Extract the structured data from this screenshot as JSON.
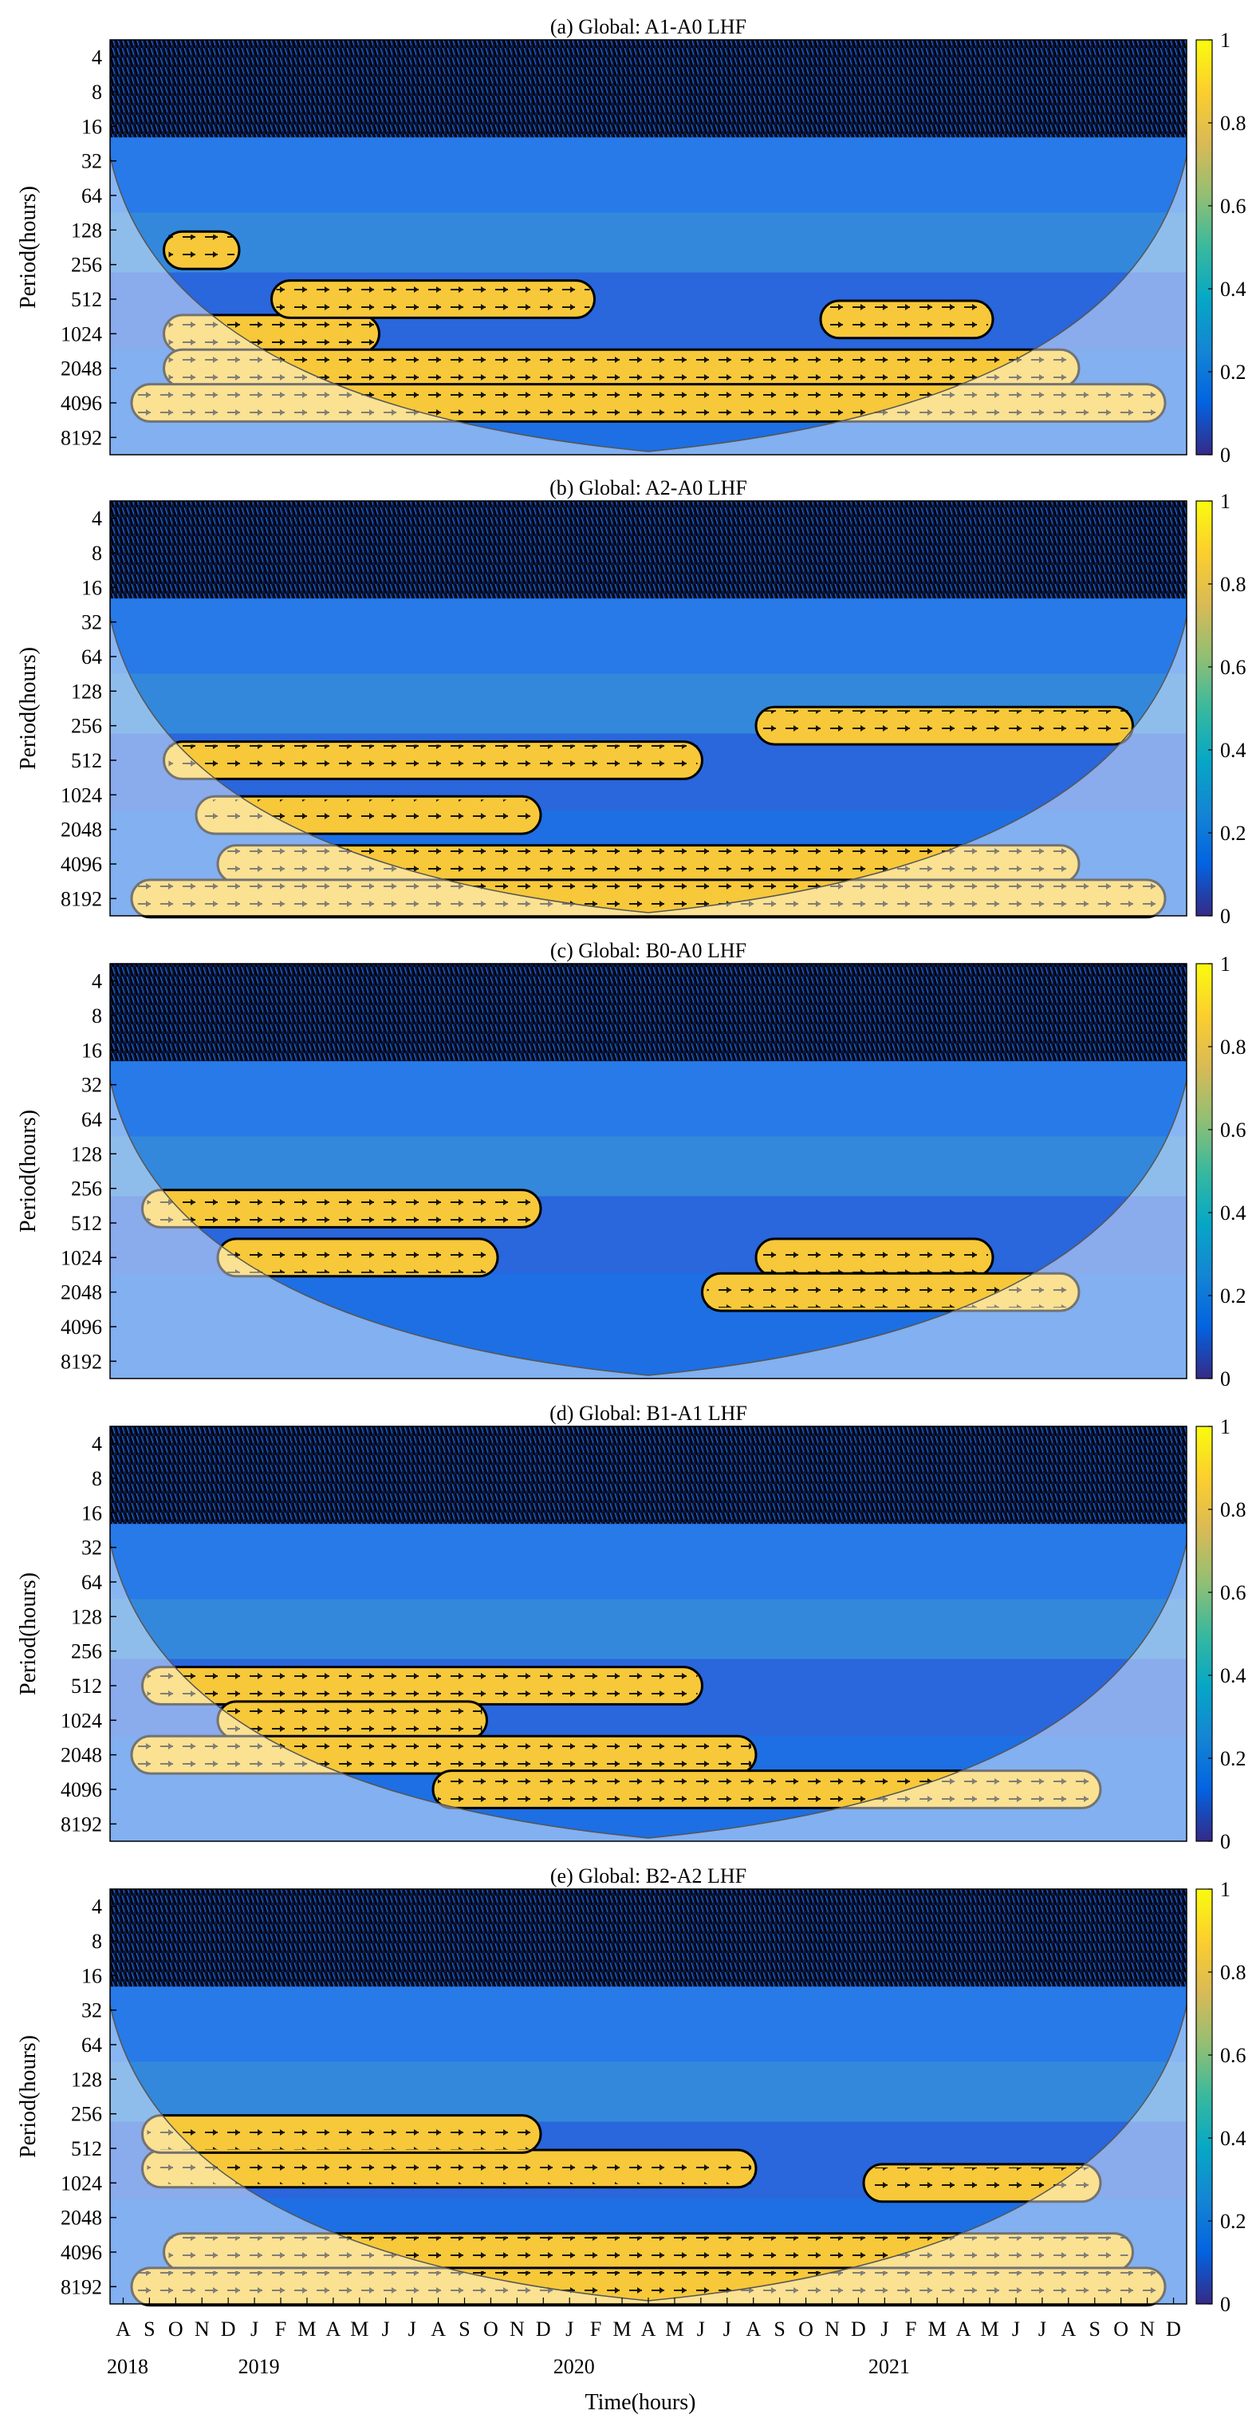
{
  "chart_data": [
    {
      "type": "heatmap",
      "panel_label": "(a)",
      "title": "Global: A1-A0 LHF",
      "ylabel": "Period(hours)",
      "y_ticks": [
        4,
        8,
        16,
        32,
        64,
        128,
        256,
        512,
        1024,
        2048,
        4096,
        8192
      ],
      "y_scale": "log2",
      "colorbar": {
        "ticks": [
          0,
          0.2,
          0.4,
          0.6,
          0.8,
          1
        ],
        "range": [
          0,
          1
        ],
        "colormap": "parula"
      },
      "significant_regions": [
        {
          "t_start": 0.05,
          "t_end": 0.25,
          "period": 1024
        },
        {
          "t_start": 0.15,
          "t_end": 0.45,
          "period": 512
        },
        {
          "t_start": 0.05,
          "t_end": 0.9,
          "period": 2048
        },
        {
          "t_start": 0.02,
          "t_end": 0.98,
          "period": 4096
        },
        {
          "t_start": 0.66,
          "t_end": 0.82,
          "period": 768
        },
        {
          "t_start": 0.05,
          "t_end": 0.12,
          "period": 192
        }
      ]
    },
    {
      "type": "heatmap",
      "panel_label": "(b)",
      "title": "Global: A2-A0 LHF",
      "ylabel": "Period(hours)",
      "y_ticks": [
        4,
        8,
        16,
        32,
        64,
        128,
        256,
        512,
        1024,
        2048,
        4096,
        8192
      ],
      "y_scale": "log2",
      "colorbar": {
        "ticks": [
          0,
          0.2,
          0.4,
          0.6,
          0.8,
          1
        ],
        "range": [
          0,
          1
        ],
        "colormap": "parula"
      },
      "significant_regions": [
        {
          "t_start": 0.05,
          "t_end": 0.55,
          "period": 512
        },
        {
          "t_start": 0.08,
          "t_end": 0.4,
          "period": 1536
        },
        {
          "t_start": 0.6,
          "t_end": 0.95,
          "period": 256
        },
        {
          "t_start": 0.1,
          "t_end": 0.9,
          "period": 4096
        },
        {
          "t_start": 0.02,
          "t_end": 0.98,
          "period": 8192
        }
      ]
    },
    {
      "type": "heatmap",
      "panel_label": "(c)",
      "title": "Global: B0-A0 LHF",
      "ylabel": "Period(hours)",
      "y_ticks": [
        4,
        8,
        16,
        32,
        64,
        128,
        256,
        512,
        1024,
        2048,
        4096,
        8192
      ],
      "y_scale": "log2",
      "colorbar": {
        "ticks": [
          0,
          0.2,
          0.4,
          0.6,
          0.8,
          1
        ],
        "range": [
          0,
          1
        ],
        "colormap": "parula"
      },
      "significant_regions": [
        {
          "t_start": 0.03,
          "t_end": 0.4,
          "period": 384
        },
        {
          "t_start": 0.1,
          "t_end": 0.36,
          "period": 1024
        },
        {
          "t_start": 0.6,
          "t_end": 0.82,
          "period": 1024
        },
        {
          "t_start": 0.55,
          "t_end": 0.9,
          "period": 2048
        }
      ]
    },
    {
      "type": "heatmap",
      "panel_label": "(d)",
      "title": "Global: B1-A1 LHF",
      "ylabel": "Period(hours)",
      "y_ticks": [
        4,
        8,
        16,
        32,
        64,
        128,
        256,
        512,
        1024,
        2048,
        4096,
        8192
      ],
      "y_scale": "log2",
      "colorbar": {
        "ticks": [
          0,
          0.2,
          0.4,
          0.6,
          0.8,
          1
        ],
        "range": [
          0,
          1
        ],
        "colormap": "parula"
      },
      "significant_regions": [
        {
          "t_start": 0.03,
          "t_end": 0.55,
          "period": 512
        },
        {
          "t_start": 0.1,
          "t_end": 0.35,
          "period": 1024
        },
        {
          "t_start": 0.02,
          "t_end": 0.6,
          "period": 2048
        },
        {
          "t_start": 0.3,
          "t_end": 0.92,
          "period": 4096
        }
      ]
    },
    {
      "type": "heatmap",
      "panel_label": "(e)",
      "title": "Global: B2-A2 LHF",
      "ylabel": "Period(hours)",
      "y_ticks": [
        4,
        8,
        16,
        32,
        64,
        128,
        256,
        512,
        1024,
        2048,
        4096,
        8192
      ],
      "y_scale": "log2",
      "colorbar": {
        "ticks": [
          0,
          0.2,
          0.4,
          0.6,
          0.8,
          1
        ],
        "range": [
          0,
          1
        ],
        "colormap": "parula"
      },
      "significant_regions": [
        {
          "t_start": 0.03,
          "t_end": 0.6,
          "period": 768
        },
        {
          "t_start": 0.03,
          "t_end": 0.4,
          "period": 384
        },
        {
          "t_start": 0.7,
          "t_end": 0.92,
          "period": 1024
        },
        {
          "t_start": 0.05,
          "t_end": 0.95,
          "period": 4096
        },
        {
          "t_start": 0.02,
          "t_end": 0.98,
          "period": 8192
        }
      ]
    }
  ],
  "x_axis": {
    "xlabel": "Time(hours)",
    "month_labels": [
      "A",
      "S",
      "O",
      "N",
      "D",
      "J",
      "F",
      "M",
      "A",
      "M",
      "J",
      "J",
      "A",
      "S",
      "O",
      "N",
      "D",
      "J",
      "F",
      "M",
      "A",
      "M",
      "J",
      "J",
      "A",
      "S",
      "O",
      "N",
      "D",
      "J",
      "F",
      "M",
      "A",
      "M",
      "J",
      "J",
      "A",
      "S",
      "O",
      "N",
      "D"
    ],
    "year_labels": [
      {
        "label": "2018",
        "month_index": 0
      },
      {
        "label": "2019",
        "month_index": 5
      },
      {
        "label": "2020",
        "month_index": 17
      },
      {
        "label": "2021",
        "month_index": 29
      }
    ]
  },
  "colors": {
    "parula": [
      "#352a87",
      "#0363e1",
      "#1485d4",
      "#06a7c6",
      "#38b99e",
      "#92bf73",
      "#d9ba56",
      "#fcce2e",
      "#f9fb0e"
    ],
    "contour": "#000000",
    "arrow": "#000000",
    "coi_shade": "#ffffff"
  }
}
